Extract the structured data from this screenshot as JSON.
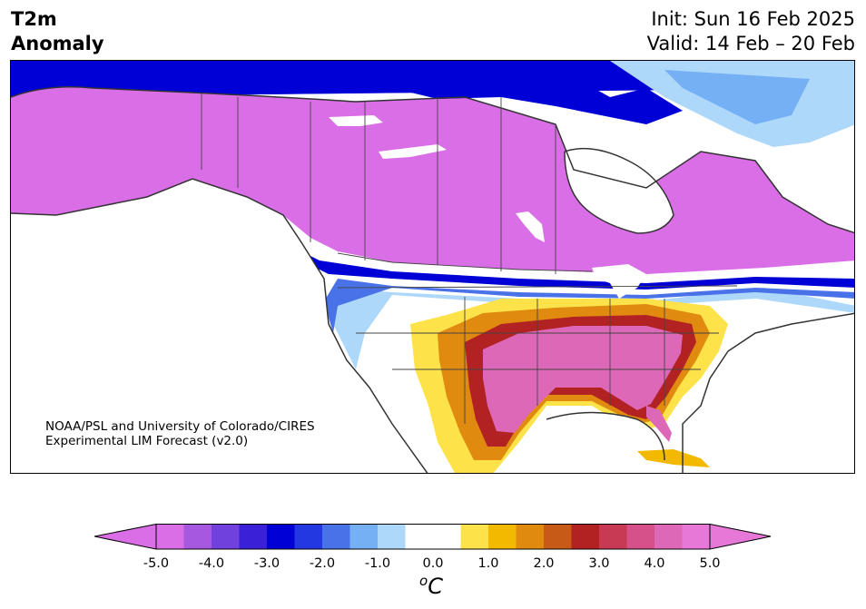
{
  "header": {
    "title_line1": "T2m",
    "title_line2": "Anomaly",
    "init": "Init: Sun 16 Feb 2025",
    "valid": "Valid: 14 Feb – 20 Feb"
  },
  "credit": {
    "line1": "NOAA/PSL and University of Colorado/CIRES",
    "line2": "Experimental LIM Forecast (v2.0)"
  },
  "colorbar": {
    "unit_base": "C",
    "unit_sup": "o",
    "ticks": [
      "-5.0",
      "-4.0",
      "-3.0",
      "-2.0",
      "-1.0",
      "0.0",
      "1.0",
      "2.0",
      "3.0",
      "4.0",
      "5.0"
    ],
    "range": [
      -5.0,
      5.0
    ],
    "colors": [
      "#d96ee6",
      "#a659e0",
      "#7141de",
      "#3a20d6",
      "#0000d6",
      "#2338e0",
      "#4a72e8",
      "#76b0f4",
      "#aed8fa",
      "#ffffff",
      "#ffffff",
      "#fde24a",
      "#f2b900",
      "#e08a10",
      "#c85a18",
      "#b22222",
      "#c83a54",
      "#d6508a",
      "#de68b8",
      "#e878d8"
    ]
  },
  "map": {
    "region": "North America",
    "colors": {
      "cold_extreme": "#d96ee6",
      "cold_strong": "#0000d6",
      "cold_mild": "#aed8fa",
      "neutral": "#ffffff",
      "warm_mild": "#fde24a",
      "warm_strong": "#b22222",
      "warm_extreme": "#de68b8"
    }
  }
}
